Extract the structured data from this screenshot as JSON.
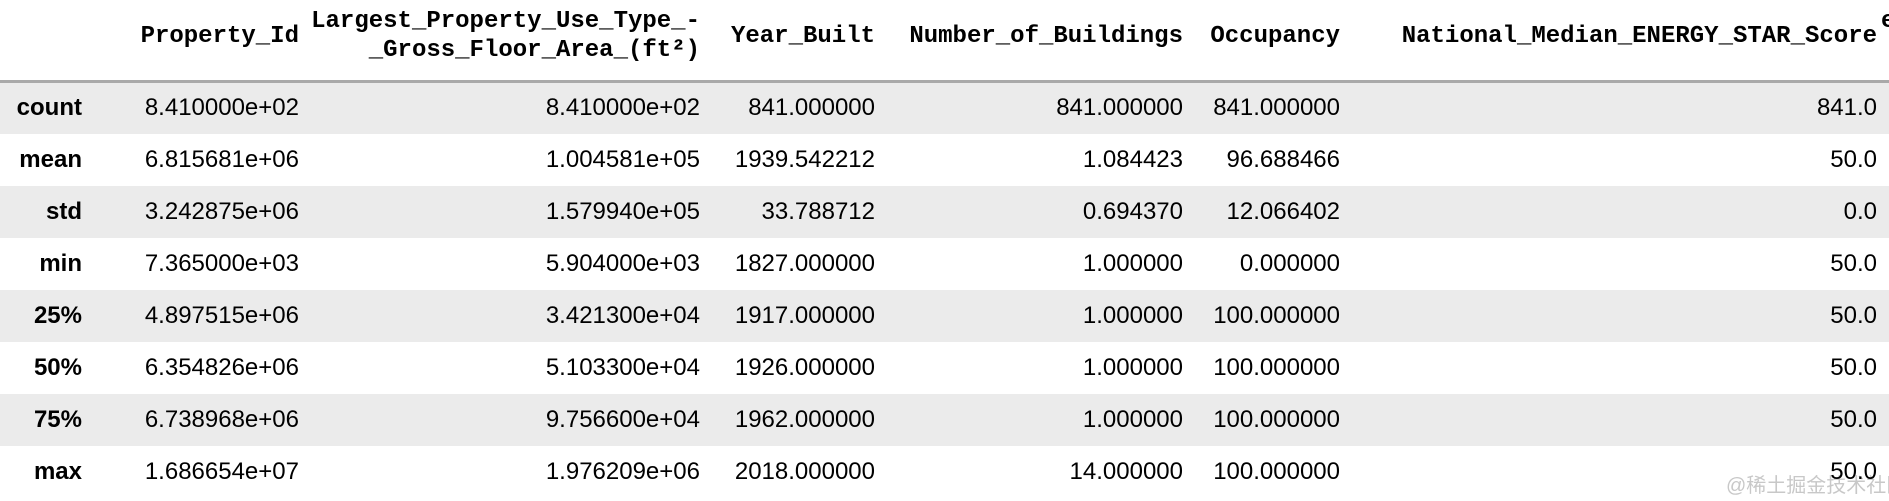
{
  "chart_data": {
    "type": "table",
    "index_label": "",
    "columns": [
      "Property_Id",
      "Largest_Property_Use_Type_-\n_Gross_Floor_Area_(ft²)",
      "Year_Built",
      "Number_of_Buildings",
      "Occupancy",
      "National_Median_ENERGY_STAR_Score"
    ],
    "index": [
      "count",
      "mean",
      "std",
      "min",
      "25%",
      "50%",
      "75%",
      "max"
    ],
    "rows": [
      [
        "8.410000e+02",
        "8.410000e+02",
        "841.000000",
        "841.000000",
        "841.000000",
        "841.0"
      ],
      [
        "6.815681e+06",
        "1.004581e+05",
        "1939.542212",
        "1.084423",
        "96.688466",
        "50.0"
      ],
      [
        "3.242875e+06",
        "1.579940e+05",
        "33.788712",
        "0.694370",
        "12.066402",
        "0.0"
      ],
      [
        "7.365000e+03",
        "5.904000e+03",
        "1827.000000",
        "1.000000",
        "0.000000",
        "50.0"
      ],
      [
        "4.897515e+06",
        "3.421300e+04",
        "1917.000000",
        "1.000000",
        "100.000000",
        "50.0"
      ],
      [
        "6.354826e+06",
        "5.103300e+04",
        "1926.000000",
        "1.000000",
        "100.000000",
        "50.0"
      ],
      [
        "6.738968e+06",
        "9.756600e+04",
        "1962.000000",
        "1.000000",
        "100.000000",
        "50.0"
      ],
      [
        "1.686654e+07",
        "1.976209e+06",
        "2018.000000",
        "14.000000",
        "100.000000",
        "50.0"
      ]
    ],
    "layout": {
      "stripe_rows": "odd",
      "header_align": "right",
      "cell_align": "right"
    },
    "clipped_next_column_header_fragment": "e"
  },
  "watermark": {
    "text": "@稀土掘金技术社区"
  },
  "colors": {
    "row_stripe": "#ebebeb",
    "header_border": "#a9a9a9",
    "text": "#000000",
    "watermark": "#c8c8c8",
    "background": "#ffffff"
  }
}
